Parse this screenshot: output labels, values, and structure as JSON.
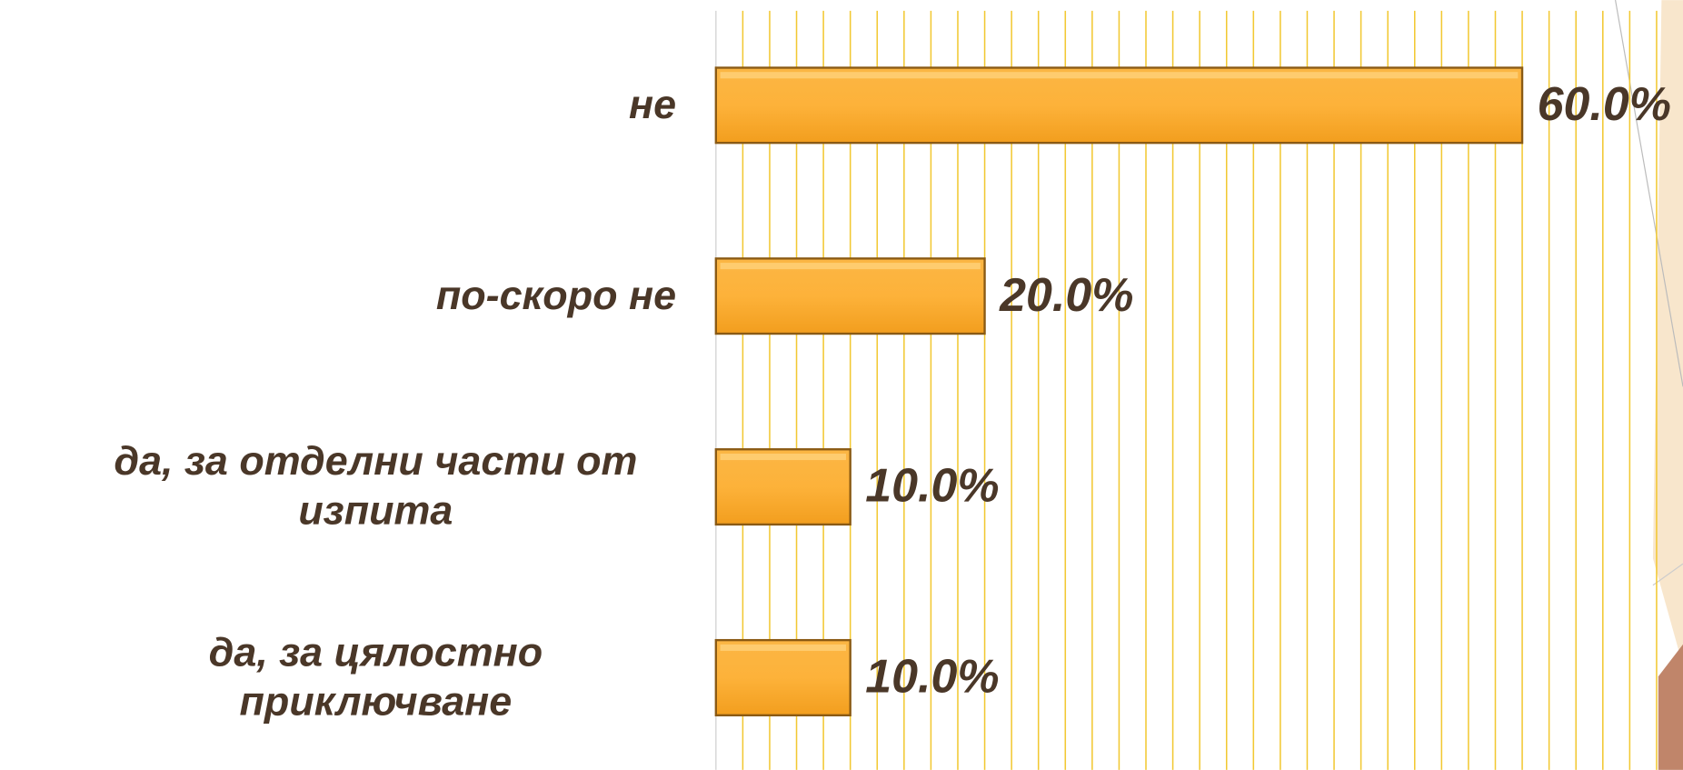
{
  "chart_data": {
    "type": "bar",
    "orientation": "horizontal",
    "categories": [
      "не",
      "по-скоро не",
      "да, за отделни части от изпита",
      "да, за цялостно приключване"
    ],
    "values": [
      60,
      20,
      10,
      10
    ],
    "value_labels": [
      "60.0%",
      "20.0%",
      "10.0%",
      "10.0%"
    ],
    "color": "#f9a825",
    "grid": true,
    "xlim": [
      0,
      70
    ],
    "xticks": [
      0,
      2,
      4,
      6,
      8,
      10,
      12,
      14,
      16,
      18,
      20,
      22,
      24,
      26,
      28,
      30,
      32,
      34,
      36,
      38,
      40,
      42,
      44,
      46,
      48,
      50,
      52,
      54,
      56,
      58,
      60,
      62,
      64,
      66,
      68,
      70
    ]
  }
}
